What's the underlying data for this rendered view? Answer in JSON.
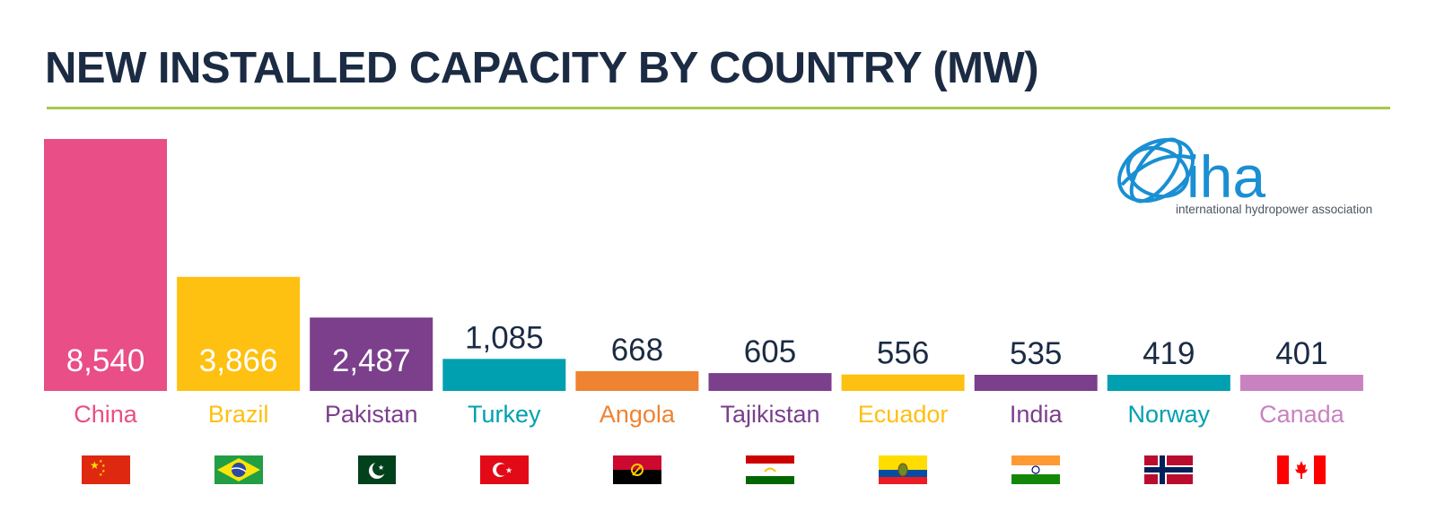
{
  "title": "NEW INSTALLED CAPACITY BY COUNTRY (MW)",
  "colors": {
    "title": "#1b2b43",
    "rule": "#a6c94a",
    "value_inside": "#ffffff",
    "value_outside": "#1b2b43",
    "logo_blue": "#1a8fd3",
    "logo_text": "#4d5560"
  },
  "logo": {
    "wordmark": "iha",
    "tagline": "international hydropower association",
    "icon": "globe-swirl-icon"
  },
  "chart_data": {
    "type": "bar",
    "title": "NEW INSTALLED CAPACITY BY COUNTRY (MW)",
    "xlabel": "",
    "ylabel": "",
    "grid": false,
    "legend": "none",
    "ylim": [
      0,
      8540
    ],
    "categories": [
      "China",
      "Brazil",
      "Pakistan",
      "Turkey",
      "Angola",
      "Tajikistan",
      "Ecuador",
      "India",
      "Norway",
      "Canada"
    ],
    "values": [
      8540,
      3866,
      2487,
      1085,
      668,
      605,
      556,
      535,
      419,
      401
    ],
    "value_labels": [
      "8,540",
      "3,866",
      "2,487",
      "1,085",
      "668",
      "605",
      "556",
      "535",
      "419",
      "401"
    ],
    "bar_colors": [
      "#e94e86",
      "#fec011",
      "#7b3f8c",
      "#00a0b0",
      "#ee8332",
      "#7b3f8c",
      "#fec011",
      "#7b3f8c",
      "#00a0b0",
      "#c882c0"
    ],
    "flag_icons": [
      "china-flag-icon",
      "brazil-flag-icon",
      "pakistan-flag-icon",
      "turkey-flag-icon",
      "angola-flag-icon",
      "tajikistan-flag-icon",
      "ecuador-flag-icon",
      "india-flag-icon",
      "norway-flag-icon",
      "canada-flag-icon"
    ]
  }
}
